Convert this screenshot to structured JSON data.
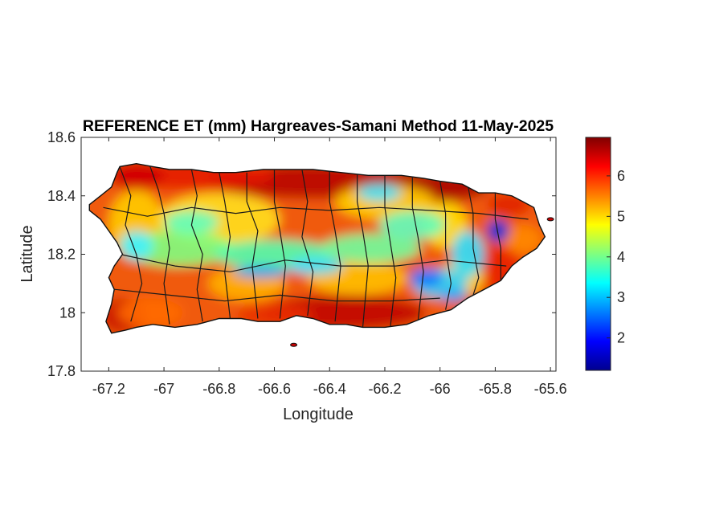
{
  "chart_data": {
    "type": "heatmap",
    "title": "REFERENCE ET (mm) Hargreaves-Samani Method  11-May-2025",
    "xlabel": "Longitude",
    "ylabel": "Latitude",
    "xlim": [
      -67.3,
      -65.58
    ],
    "ylim": [
      17.8,
      18.6
    ],
    "xticks": [
      -67.2,
      -67,
      -66.8,
      -66.6,
      -66.4,
      -66.2,
      -66,
      -65.8,
      -65.6
    ],
    "yticks": [
      18.6,
      18.4,
      18.2,
      18,
      17.8
    ],
    "colormap": "jet",
    "colorbar": {
      "range": [
        1.2,
        6.95
      ],
      "ticks": [
        2,
        3,
        4,
        5,
        6
      ]
    },
    "color_scale": [
      "#00008f",
      "#0000ff",
      "#00ffff",
      "#ffff00",
      "#ff0000",
      "#800000"
    ]
  }
}
